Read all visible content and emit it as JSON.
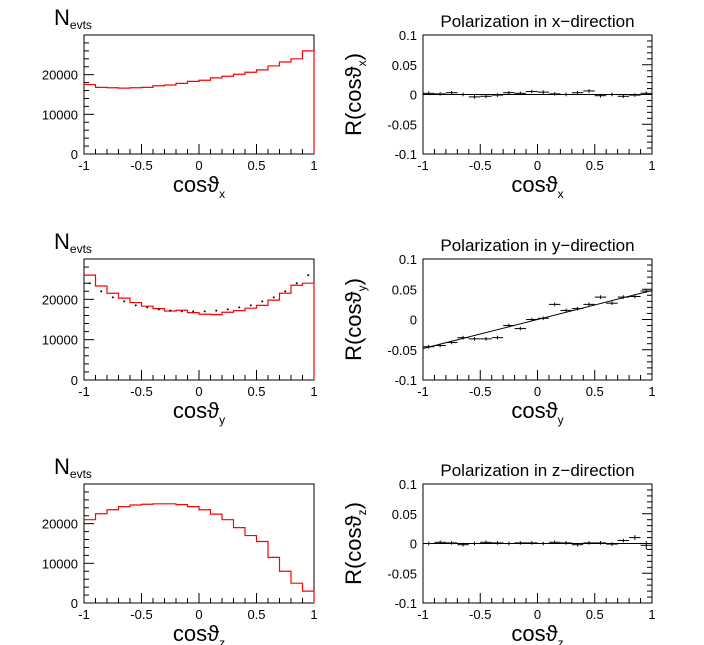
{
  "chart_data": [
    {
      "type": "histogram",
      "ylabel_main": "N",
      "ylabel_sub": "evts",
      "xlabel_main": "cosϑ",
      "xlabel_sub": "x",
      "xlim": [
        -1,
        1
      ],
      "ylim": [
        0,
        30000
      ],
      "xticks": [
        "-1",
        "-0.5",
        "0",
        "0.5",
        "1"
      ],
      "yticks": [
        "0",
        "10000",
        "20000"
      ],
      "bin_edges": [
        -1,
        -0.9,
        -0.8,
        -0.7,
        -0.6,
        -0.5,
        -0.4,
        -0.3,
        -0.2,
        -0.1,
        0,
        0.1,
        0.2,
        0.3,
        0.4,
        0.5,
        0.6,
        0.7,
        0.8,
        0.9,
        1
      ],
      "values": [
        17500,
        16800,
        16700,
        16600,
        16700,
        16800,
        17200,
        17400,
        17800,
        18300,
        18600,
        19200,
        19600,
        20100,
        20600,
        21200,
        22200,
        23200,
        24000,
        26000
      ],
      "dotted": []
    },
    {
      "type": "errorbar",
      "title": "Polarization in x−direction",
      "ylabel_main": "R(cosϑ",
      "ylabel_sub": "x",
      "ylabel_close": ")",
      "xlabel_main": "cosϑ",
      "xlabel_sub": "x",
      "xlim": [
        -1,
        1
      ],
      "ylim": [
        -0.1,
        0.1
      ],
      "xticks": [
        "-1",
        "-0.5",
        "0",
        "0.5",
        "1"
      ],
      "yticks": [
        "-0.1",
        "-0.05",
        "0",
        "0.05",
        "0.1"
      ],
      "x": [
        -0.95,
        -0.85,
        -0.75,
        -0.65,
        -0.55,
        -0.45,
        -0.35,
        -0.25,
        -0.15,
        -0.05,
        0.05,
        0.15,
        0.25,
        0.35,
        0.45,
        0.55,
        0.65,
        0.75,
        0.85,
        0.95
      ],
      "y": [
        0.002,
        0.001,
        0.003,
        0.0,
        -0.004,
        -0.003,
        -0.001,
        0.003,
        0.002,
        0.005,
        0.004,
        0.001,
        0.0,
        0.003,
        0.006,
        -0.002,
        0.0,
        -0.003,
        -0.001,
        0.002
      ],
      "yerr": [
        0.003,
        0.003,
        0.003,
        0.003,
        0.003,
        0.003,
        0.003,
        0.003,
        0.003,
        0.003,
        0.003,
        0.003,
        0.003,
        0.003,
        0.003,
        0.003,
        0.003,
        0.003,
        0.003,
        0.003
      ],
      "fit": [
        [
          -1,
          0.0
        ],
        [
          1,
          0.0
        ]
      ]
    },
    {
      "type": "histogram",
      "ylabel_main": "N",
      "ylabel_sub": "evts",
      "xlabel_main": "cosϑ",
      "xlabel_sub": "y",
      "xlim": [
        -1,
        1
      ],
      "ylim": [
        0,
        30000
      ],
      "xticks": [
        "-1",
        "-0.5",
        "0",
        "0.5",
        "1"
      ],
      "yticks": [
        "0",
        "10000",
        "20000"
      ],
      "bin_edges": [
        -1,
        -0.9,
        -0.8,
        -0.7,
        -0.6,
        -0.5,
        -0.4,
        -0.3,
        -0.2,
        -0.1,
        0,
        0.1,
        0.2,
        0.3,
        0.4,
        0.5,
        0.6,
        0.7,
        0.8,
        0.9,
        1
      ],
      "values": [
        26000,
        23300,
        21500,
        20300,
        19200,
        18300,
        17700,
        17100,
        17300,
        16700,
        16300,
        16200,
        16800,
        17200,
        17800,
        18500,
        19800,
        21500,
        23500,
        24000
      ],
      "dotted": [
        [
          -0.95,
          24000
        ],
        [
          -0.85,
          22000
        ],
        [
          -0.75,
          20500
        ],
        [
          -0.65,
          19500
        ],
        [
          -0.55,
          18500
        ],
        [
          -0.45,
          18000
        ],
        [
          -0.35,
          17500
        ],
        [
          -0.25,
          17200
        ],
        [
          -0.15,
          17000
        ],
        [
          -0.05,
          17000
        ],
        [
          0.05,
          17000
        ],
        [
          0.15,
          17200
        ],
        [
          0.25,
          17500
        ],
        [
          0.35,
          18000
        ],
        [
          0.45,
          18500
        ],
        [
          0.55,
          19500
        ],
        [
          0.65,
          20500
        ],
        [
          0.75,
          22000
        ],
        [
          0.85,
          24000
        ],
        [
          0.95,
          26000
        ]
      ]
    },
    {
      "type": "errorbar",
      "title": "Polarization in y−direction",
      "ylabel_main": "R(cosϑ",
      "ylabel_sub": "y",
      "ylabel_close": ")",
      "xlabel_main": "cosϑ",
      "xlabel_sub": "y",
      "xlim": [
        -1,
        1
      ],
      "ylim": [
        -0.1,
        0.1
      ],
      "xticks": [
        "-1",
        "-0.5",
        "0",
        "0.5",
        "1"
      ],
      "yticks": [
        "-0.1",
        "-0.05",
        "0",
        "0.05",
        "0.1"
      ],
      "x": [
        -0.95,
        -0.85,
        -0.75,
        -0.65,
        -0.55,
        -0.45,
        -0.35,
        -0.25,
        -0.15,
        -0.05,
        0.05,
        0.15,
        0.25,
        0.35,
        0.45,
        0.55,
        0.65,
        0.75,
        0.85,
        0.95
      ],
      "y": [
        -0.045,
        -0.043,
        -0.038,
        -0.03,
        -0.032,
        -0.032,
        -0.03,
        -0.01,
        -0.015,
        0.0,
        0.002,
        0.025,
        0.015,
        0.018,
        0.025,
        0.037,
        0.027,
        0.037,
        0.038,
        0.047
      ],
      "yerr": [
        0.003,
        0.003,
        0.003,
        0.003,
        0.003,
        0.003,
        0.003,
        0.003,
        0.003,
        0.003,
        0.003,
        0.003,
        0.003,
        0.003,
        0.003,
        0.003,
        0.003,
        0.003,
        0.003,
        0.003
      ],
      "fit": [
        [
          -1,
          -0.048
        ],
        [
          1,
          0.048
        ]
      ]
    },
    {
      "type": "histogram",
      "ylabel_main": "N",
      "ylabel_sub": "evts",
      "xlabel_main": "cosϑ",
      "xlabel_sub": "z",
      "xlim": [
        -1,
        1
      ],
      "ylim": [
        0,
        30000
      ],
      "xticks": [
        "-1",
        "-0.5",
        "0",
        "0.5",
        "1"
      ],
      "yticks": [
        "0",
        "10000",
        "20000"
      ],
      "bin_edges": [
        -1,
        -0.9,
        -0.8,
        -0.7,
        -0.6,
        -0.5,
        -0.4,
        -0.3,
        -0.2,
        -0.1,
        0,
        0.1,
        0.2,
        0.3,
        0.4,
        0.5,
        0.6,
        0.7,
        0.8,
        0.9,
        1
      ],
      "values": [
        21000,
        22500,
        23500,
        24300,
        24700,
        24900,
        25000,
        25000,
        24800,
        24300,
        23500,
        22400,
        21000,
        19000,
        17000,
        15500,
        11500,
        8000,
        5000,
        3000
      ],
      "dotted": []
    },
    {
      "type": "errorbar",
      "title": "Polarization in z−direction",
      "ylabel_main": "R(cosϑ",
      "ylabel_sub": "z",
      "ylabel_close": ")",
      "xlabel_main": "cosϑ",
      "xlabel_sub": "z",
      "xlim": [
        -1,
        1
      ],
      "ylim": [
        -0.1,
        0.1
      ],
      "xticks": [
        "-1",
        "-0.5",
        "0",
        "0.5",
        "1"
      ],
      "yticks": [
        "-0.1",
        "-0.05",
        "0",
        "0.05",
        "0.1"
      ],
      "x": [
        -0.95,
        -0.85,
        -0.75,
        -0.65,
        -0.55,
        -0.45,
        -0.35,
        -0.25,
        -0.15,
        -0.05,
        0.05,
        0.15,
        0.25,
        0.35,
        0.45,
        0.55,
        0.65,
        0.75,
        0.85,
        0.95
      ],
      "y": [
        0.0,
        0.002,
        0.001,
        -0.002,
        0.0,
        0.002,
        0.001,
        0.0,
        0.001,
        0.001,
        0.0,
        0.002,
        0.001,
        -0.002,
        0.001,
        0.001,
        -0.001,
        0.005,
        0.01,
        -0.003
      ],
      "yerr": [
        0.003,
        0.003,
        0.003,
        0.003,
        0.003,
        0.003,
        0.003,
        0.003,
        0.003,
        0.003,
        0.003,
        0.003,
        0.003,
        0.003,
        0.003,
        0.003,
        0.003,
        0.003,
        0.004,
        0.007
      ],
      "fit": [
        [
          -1,
          0.0
        ],
        [
          1,
          0.0
        ]
      ]
    }
  ],
  "colors": {
    "histogram": "#ff0000",
    "axes": "#000000",
    "points": "#000000"
  }
}
